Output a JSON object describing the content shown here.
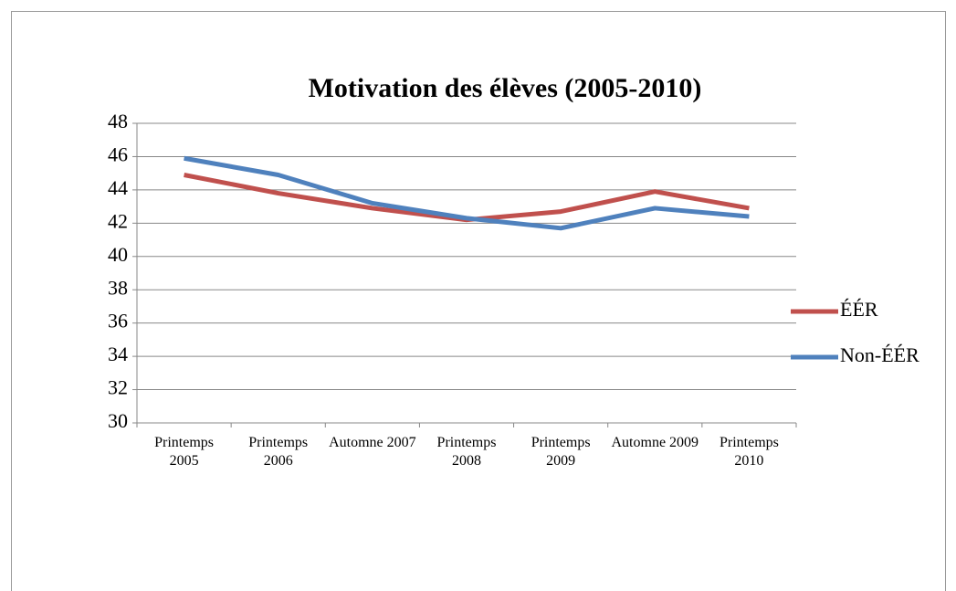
{
  "chart_data": {
    "type": "line",
    "title": "Motivation des élèves (2005-2010)",
    "categories": [
      "Printemps 2005",
      "Printemps 2006",
      "Automne 2007",
      "Printemps 2008",
      "Printemps 2009",
      "Automne 2009",
      "Printemps 2010"
    ],
    "series": [
      {
        "name": "ÉÉR",
        "color": "#c0504d",
        "values": [
          44.9,
          43.8,
          42.9,
          42.2,
          42.7,
          43.9,
          42.9
        ]
      },
      {
        "name": "Non-ÉÉR",
        "color": "#4f81bd",
        "values": [
          45.9,
          44.9,
          43.2,
          42.3,
          41.7,
          42.9,
          42.4
        ]
      }
    ],
    "ylim": [
      30,
      48
    ],
    "yticks": [
      30,
      32,
      34,
      36,
      38,
      40,
      42,
      44,
      46,
      48
    ],
    "grid": true,
    "legend": "right"
  }
}
